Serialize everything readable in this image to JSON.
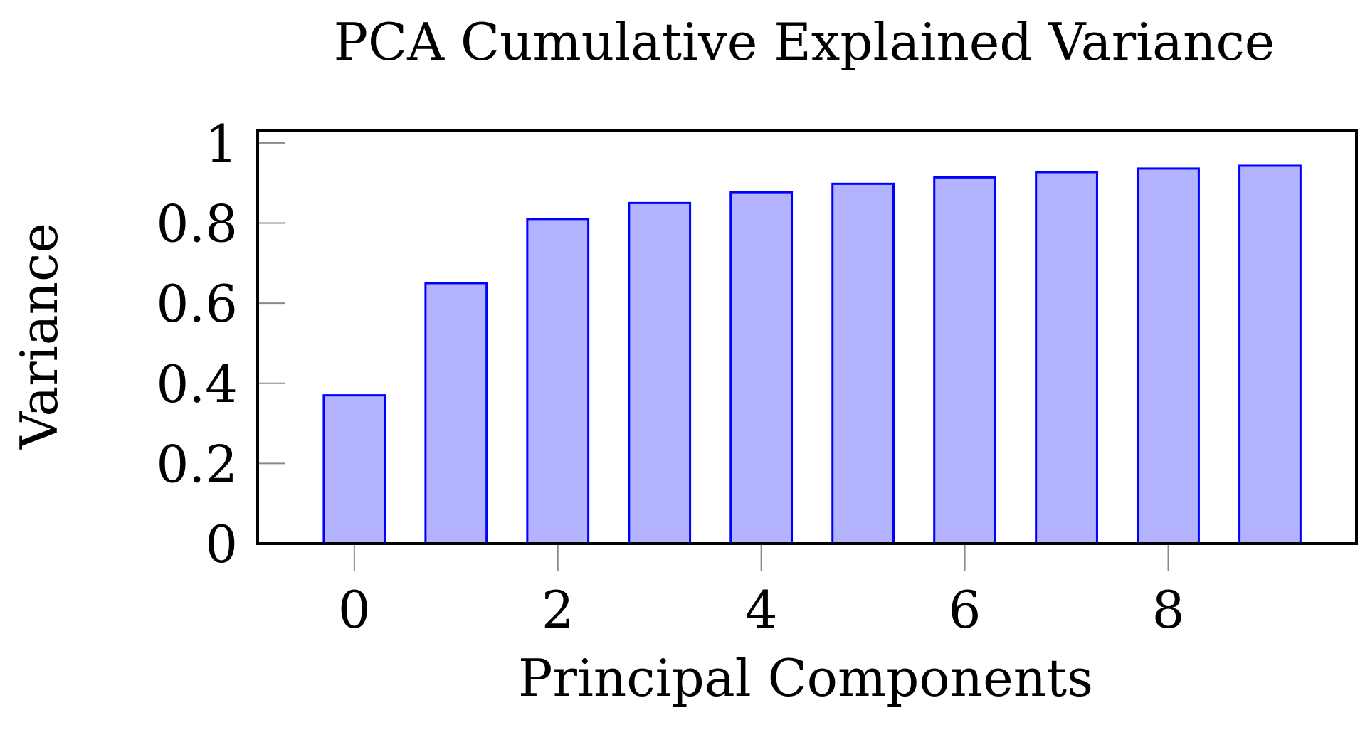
{
  "chart_data": {
    "type": "bar",
    "title": "PCA Cumulative Explained Variance",
    "xlabel": "Principal Components",
    "ylabel": "Variance",
    "x": [
      0,
      1,
      2,
      3,
      4,
      5,
      6,
      7,
      8,
      9
    ],
    "values": [
      0.37,
      0.65,
      0.81,
      0.85,
      0.877,
      0.898,
      0.914,
      0.927,
      0.936,
      0.943
    ],
    "xlim": [
      -0.95,
      9.85
    ],
    "ylim": [
      0,
      1.03
    ],
    "x_ticks": [
      0,
      2,
      4,
      6,
      8
    ],
    "y_ticks": [
      0,
      0.2,
      0.4,
      0.6,
      0.8,
      1
    ],
    "x_tick_labels": [
      "0",
      "2",
      "4",
      "6",
      "8"
    ],
    "y_tick_labels": [
      "0",
      "0.2",
      "0.4",
      "0.6",
      "0.8",
      "1"
    ],
    "bar_fill": "#b3b3ff",
    "bar_stroke": "#0000ff",
    "grid": false,
    "legend": "none"
  }
}
